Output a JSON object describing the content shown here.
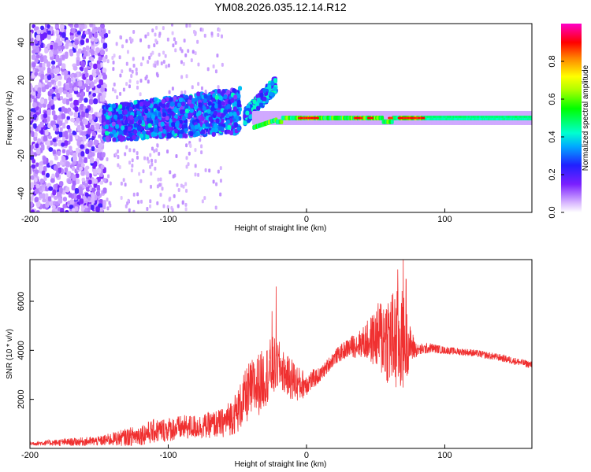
{
  "chart_data": [
    {
      "type": "heatmap",
      "title": "YM08.2026.035.12.14.R12",
      "xlabel": "Height of straight line (km)",
      "ylabel": "Frequency (Hz)",
      "xlim": [
        -200,
        163
      ],
      "ylim": [
        -50,
        50
      ],
      "xticks": [
        -200,
        -100,
        0,
        100
      ],
      "yticks": [
        -40,
        -20,
        0,
        20,
        40
      ],
      "xtick_labels": [
        "-200",
        "-100",
        "0",
        "100"
      ],
      "ytick_labels": [
        "-40",
        "-20",
        "0",
        "20",
        "40"
      ],
      "colorbar": {
        "label": "Normalized spectral amplitude",
        "range": [
          0,
          1
        ],
        "ticks": [
          0.0,
          0.2,
          0.4,
          0.6,
          0.8
        ],
        "tick_labels": [
          "0.0",
          "0.2",
          "0.4",
          "0.6",
          "0.8"
        ],
        "colormap": "rainbow (white-purple-blue-cyan-green-yellow-red-magenta)"
      },
      "features": [
        {
          "name": "noise",
          "x_range": [
            -200,
            -145
          ],
          "f_range": [
            -50,
            50
          ],
          "amplitude": 0.15
        },
        {
          "name": "broad-band",
          "x_range": [
            -147,
            -48
          ],
          "f_range": [
            -12,
            18
          ],
          "amplitude": 0.25
        },
        {
          "name": "rising-branch",
          "x_range": [
            -45,
            -22
          ],
          "f_start": 0,
          "f_end": 18,
          "amplitude": 0.3
        },
        {
          "name": "narrow-line",
          "x_range": [
            -38,
            163
          ],
          "f_center": 0,
          "f_width": 4,
          "amplitude": 0.55
        }
      ]
    },
    {
      "type": "line",
      "xlabel": "Height of straight line (km)",
      "ylabel": "SNR (10 * v/v)",
      "xlim": [
        -200,
        163
      ],
      "ylim": [
        0,
        7700
      ],
      "xticks": [
        -200,
        -100,
        0,
        100
      ],
      "yticks": [
        2000,
        4000,
        6000
      ],
      "xtick_labels": [
        "-200",
        "-100",
        "0",
        "100"
      ],
      "ytick_labels": [
        "2000",
        "4000",
        "6000"
      ],
      "color": "#f03030",
      "series": [
        {
          "name": "SNR",
          "x": [
            -200,
            -175,
            -150,
            -125,
            -110,
            -90,
            -75,
            -60,
            -50,
            -42,
            -35,
            -30,
            -25,
            -20,
            -15,
            -10,
            -5,
            0,
            10,
            20,
            30,
            40,
            50,
            55,
            60,
            65,
            70,
            75,
            80,
            90,
            100,
            120,
            140,
            163
          ],
          "y": [
            200,
            250,
            300,
            500,
            700,
            850,
            900,
            1050,
            1500,
            2300,
            2600,
            2900,
            3300,
            3400,
            3000,
            2800,
            2600,
            2650,
            3000,
            3700,
            4100,
            4300,
            4500,
            4600,
            4500,
            4300,
            4400,
            4200,
            4000,
            4100,
            4000,
            3900,
            3700,
            3400
          ],
          "noise": [
            80,
            150,
            200,
            400,
            500,
            500,
            500,
            600,
            900,
            1200,
            1300,
            1200,
            1300,
            1000,
            800,
            900,
            700,
            500,
            300,
            300,
            400,
            600,
            1200,
            1800,
            2000,
            2200,
            2100,
            800,
            250,
            200,
            150,
            150,
            150,
            150
          ],
          "spikes": [
            {
              "x": -22,
              "y": 6600
            },
            {
              "x": -25,
              "y": 5600
            },
            {
              "x": 66,
              "y": 7300
            },
            {
              "x": 70,
              "y": 7700
            },
            {
              "x": 72,
              "y": 6900
            },
            {
              "x": 64,
              "y": 5200
            }
          ]
        }
      ]
    }
  ]
}
